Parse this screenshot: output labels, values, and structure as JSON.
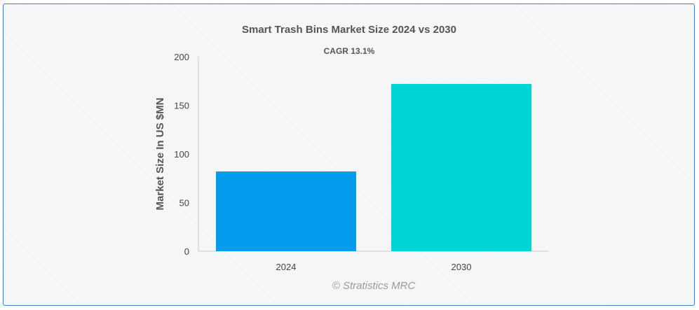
{
  "chart_data": {
    "type": "bar",
    "title": "Smart Trash Bins Market Size 2024 vs 2030",
    "subtitle": "CAGR 13.1%",
    "categories": [
      "2024",
      "2030"
    ],
    "values": [
      82,
      172
    ],
    "colors": [
      "#049ded",
      "#00d4d4"
    ],
    "xlabel": "",
    "ylabel": "Market Size In US $MN",
    "ylim": [
      0,
      200
    ],
    "yticks": [
      0,
      50,
      100,
      150,
      200
    ],
    "grid": false,
    "credit": "© Stratistics MRC"
  }
}
